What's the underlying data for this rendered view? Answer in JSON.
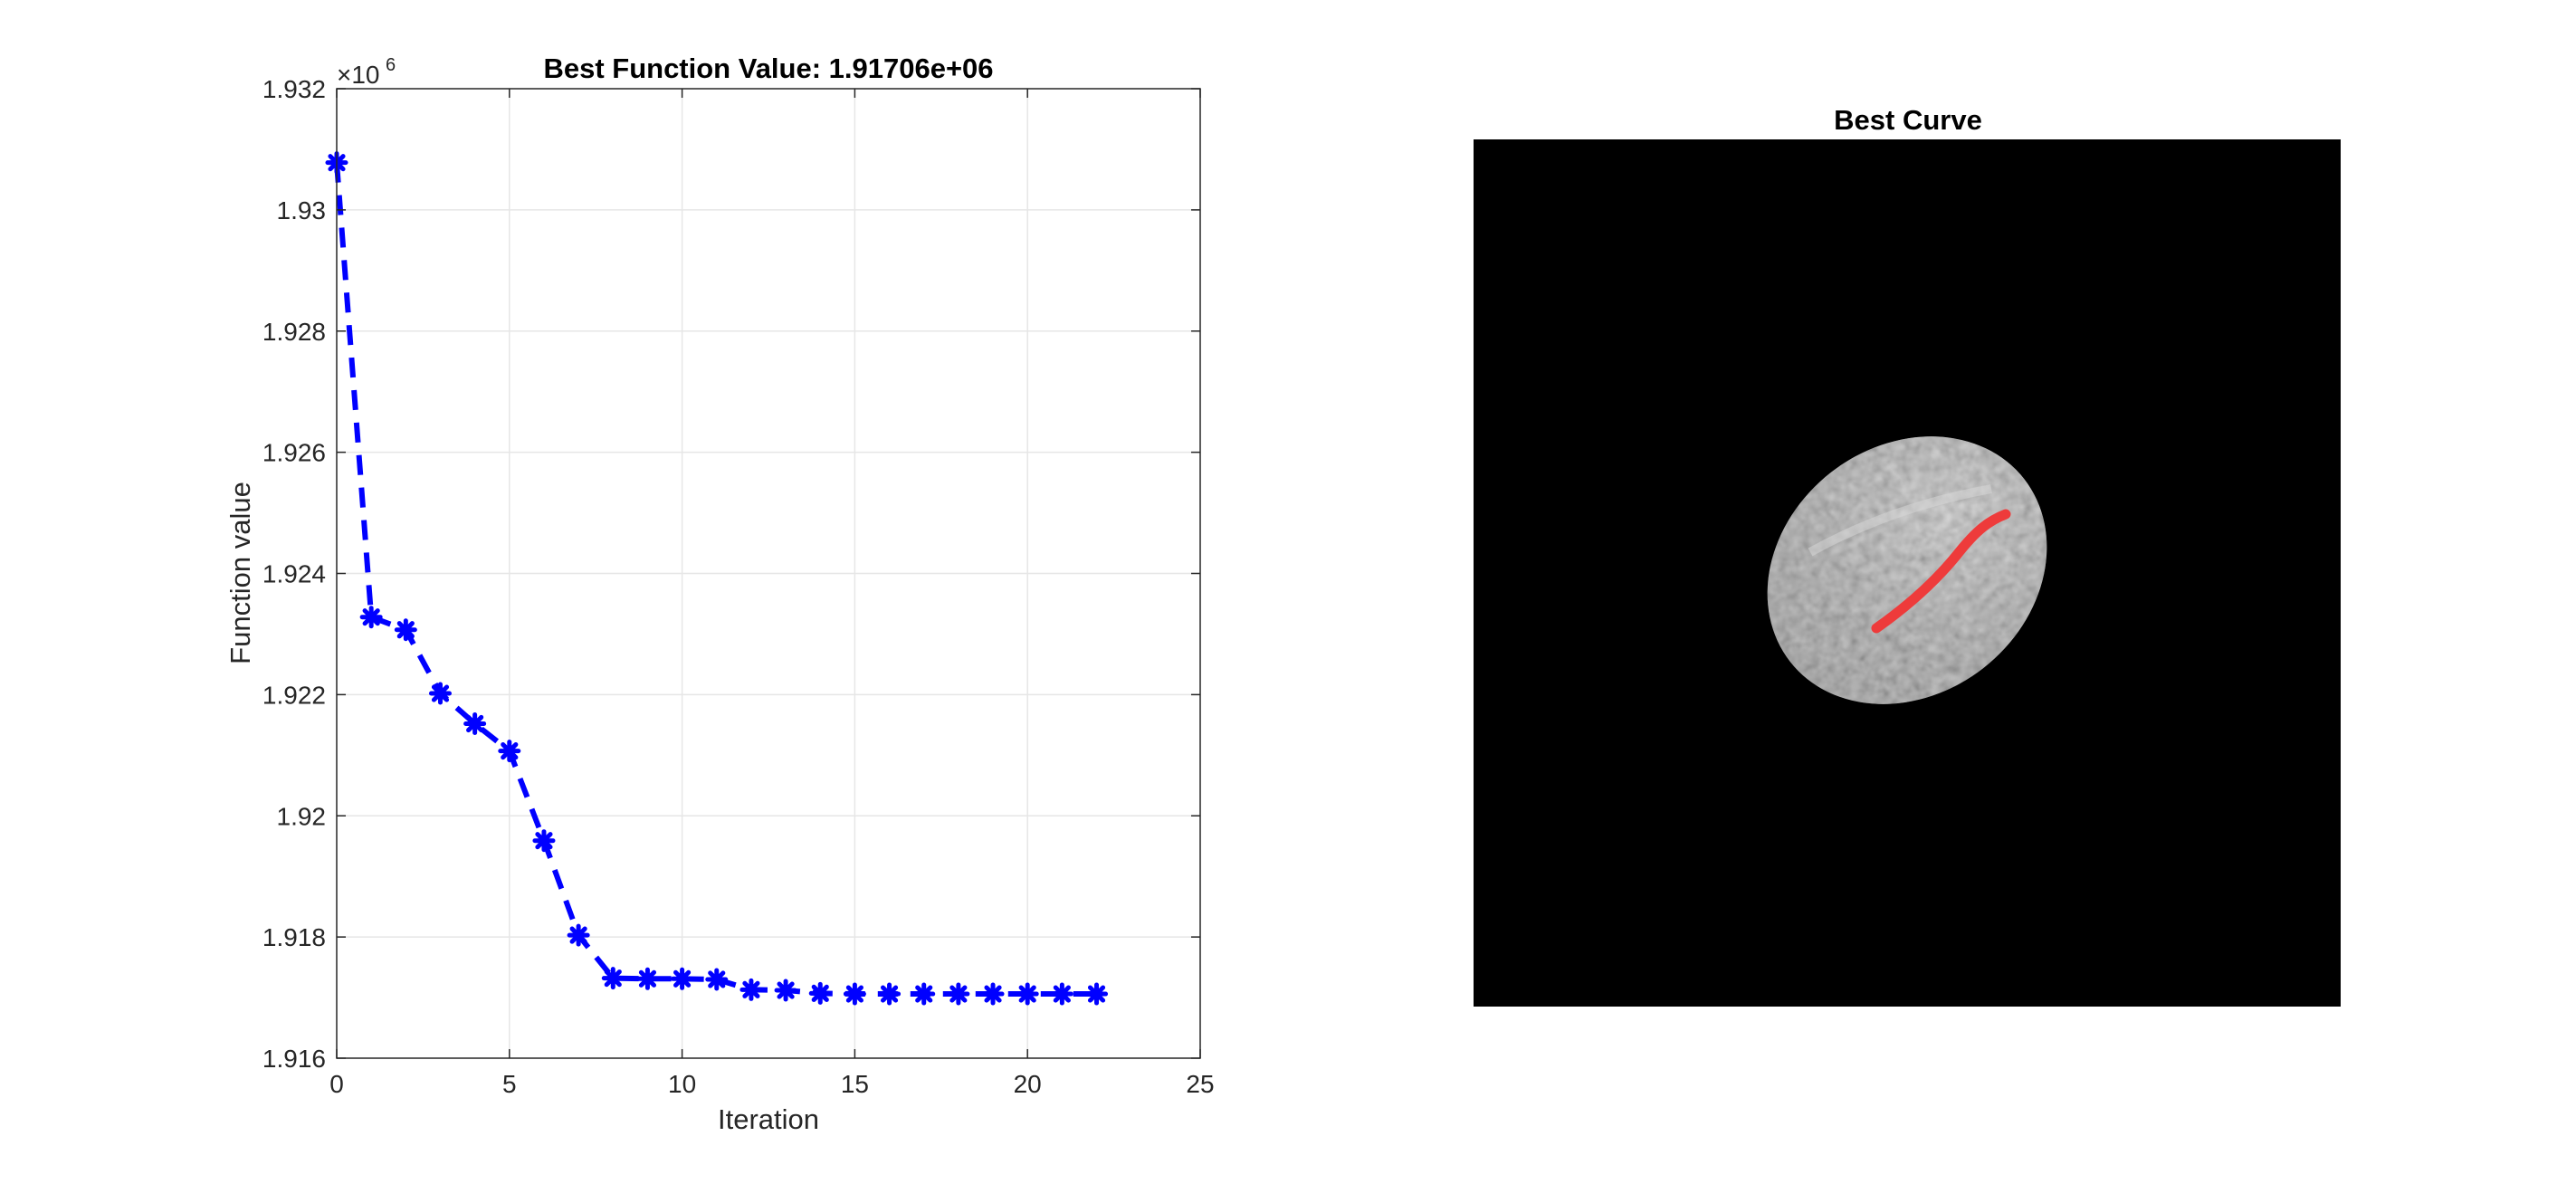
{
  "chart_data": [
    {
      "type": "line",
      "title": "Best Function Value: 1.91706e+06",
      "xlabel": "Iteration",
      "ylabel": "Function value",
      "y_exponent_label": "×10",
      "y_exponent_power": "6",
      "xlim": [
        0,
        25
      ],
      "ylim": [
        1916000,
        1932000
      ],
      "x_ticks": [
        0,
        5,
        10,
        15,
        20,
        25
      ],
      "x_tick_labels": [
        "0",
        "5",
        "10",
        "15",
        "20",
        "25"
      ],
      "y_ticks": [
        1916000,
        1918000,
        1920000,
        1922000,
        1924000,
        1926000,
        1928000,
        1930000,
        1932000
      ],
      "y_tick_labels": [
        "1.916",
        "1.918",
        "1.92",
        "1.922",
        "1.924",
        "1.926",
        "1.928",
        "1.93",
        "1.932"
      ],
      "grid": true,
      "legend": "none",
      "series": [
        {
          "line_style": "dashed",
          "marker": "asterisk",
          "color": "#0000ff",
          "x": [
            0,
            1,
            2,
            3,
            4,
            5,
            6,
            7,
            8,
            9,
            10,
            11,
            12,
            13,
            14,
            15,
            16,
            17,
            18,
            19,
            20,
            21,
            22
          ],
          "y": [
            1930780,
            1923280,
            1923070,
            1922020,
            1921520,
            1921070,
            1919590,
            1918030,
            1917320,
            1917310,
            1917310,
            1917300,
            1917130,
            1917120,
            1917070,
            1917060,
            1917060,
            1917060,
            1917060,
            1917060,
            1917060,
            1917060,
            1917060
          ]
        }
      ]
    },
    {
      "type": "image",
      "title": "Best Curve",
      "background_color": "#000000",
      "blob_color": "#9a9a9a",
      "curve_color": "#ee3b3b"
    }
  ]
}
